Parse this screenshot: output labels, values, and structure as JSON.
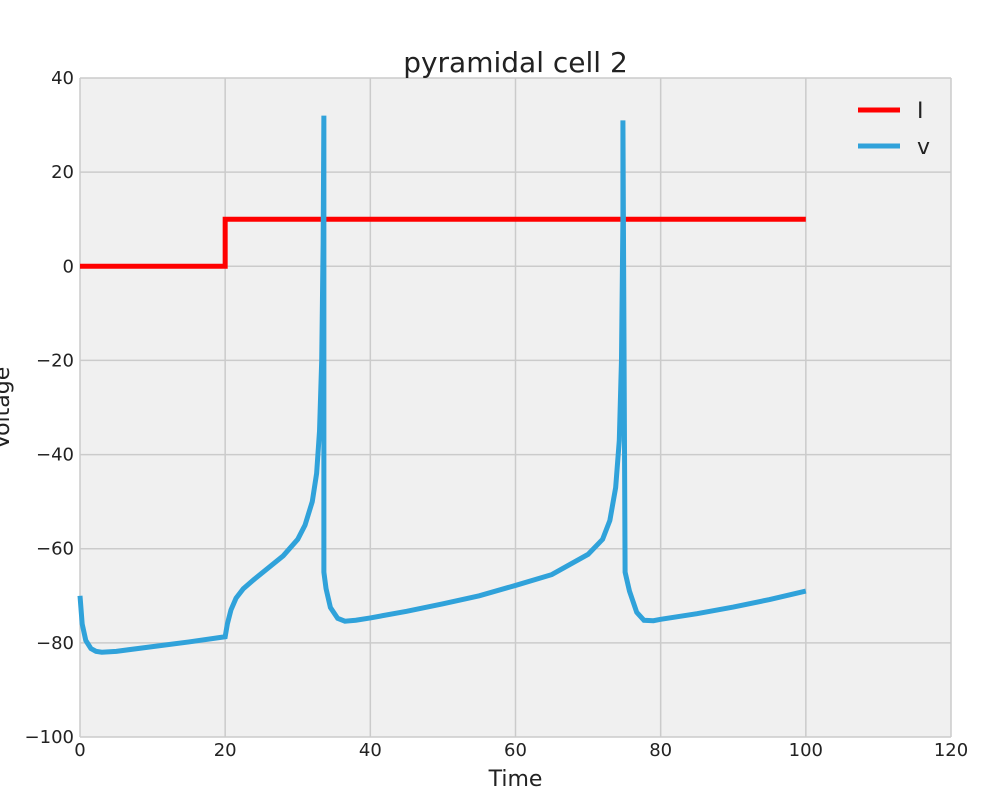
{
  "chart_data": {
    "type": "line",
    "title": "pyramidal cell 2",
    "xlabel": "Time",
    "ylabel": "Voltage",
    "xlim": [
      0,
      120
    ],
    "ylim": [
      -100,
      40
    ],
    "xticks": [
      0,
      20,
      40,
      60,
      80,
      100,
      120
    ],
    "yticks": [
      -100,
      -80,
      -60,
      -40,
      -20,
      0,
      20,
      40
    ],
    "grid": true,
    "legend_position": "top-right",
    "series": [
      {
        "name": "I",
        "color": "#ff0000",
        "x": [
          0,
          20,
          20,
          100
        ],
        "y": [
          0,
          0,
          10,
          10
        ]
      },
      {
        "name": "v",
        "color": "#30a2da",
        "x": [
          0,
          0.3,
          0.8,
          1.5,
          2.2,
          3,
          5,
          10,
          15,
          20,
          20.3,
          20.8,
          21.5,
          22.5,
          24,
          26,
          28,
          30,
          31,
          32,
          32.6,
          33,
          33.3,
          33.5,
          33.6,
          33.6,
          33.9,
          34.5,
          35.5,
          36.5,
          38,
          40,
          45,
          50,
          55,
          60,
          65,
          70,
          72,
          73,
          73.8,
          74.3,
          74.6,
          74.8,
          74.8,
          75.1,
          75.7,
          76.7,
          77.7,
          79,
          80,
          85,
          90,
          95,
          100
        ],
        "y": [
          -70,
          -76,
          -79.5,
          -81.2,
          -81.8,
          -82,
          -81.8,
          -80.8,
          -79.8,
          -78.7,
          -76,
          -73,
          -70.5,
          -68.5,
          -66.5,
          -64,
          -61.5,
          -58,
          -55,
          -50,
          -44,
          -35,
          -20,
          5,
          32,
          -65,
          -68.5,
          -72.5,
          -74.8,
          -75.4,
          -75.2,
          -74.7,
          -73.3,
          -71.7,
          -70,
          -67.8,
          -65.5,
          -61.2,
          -58,
          -54,
          -47,
          -37,
          -20,
          10,
          31,
          -65,
          -69,
          -73.5,
          -75.2,
          -75.3,
          -75,
          -73.8,
          -72.4,
          -70.8,
          -69
        ]
      }
    ]
  }
}
